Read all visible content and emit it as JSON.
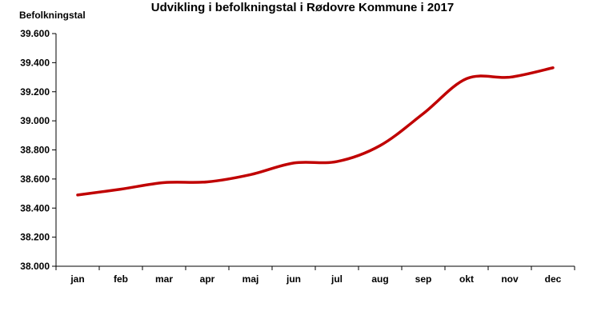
{
  "chart_data": {
    "type": "line",
    "title": "Udvikling i befolkningstal i Rødovre Kommune i 2017",
    "ylabel": "Befolkningstal",
    "xlabel": "",
    "categories": [
      "jan",
      "feb",
      "mar",
      "apr",
      "maj",
      "jun",
      "jul",
      "aug",
      "sep",
      "okt",
      "nov",
      "dec"
    ],
    "series": [
      {
        "values": [
          38490,
          38530,
          38575,
          38580,
          38630,
          38710,
          38720,
          38830,
          39050,
          39290,
          39300,
          39365
        ]
      }
    ],
    "ylim": [
      38000,
      39600
    ],
    "yticks": [
      38000,
      38200,
      38400,
      38600,
      38800,
      39000,
      39200,
      39400,
      39600
    ],
    "ytick_labels": [
      "38.000",
      "38.200",
      "38.400",
      "38.600",
      "38.800",
      "39.000",
      "39.200",
      "39.400",
      "39.600"
    ],
    "grid": false,
    "legend": "none",
    "line_color": "#c00000"
  }
}
